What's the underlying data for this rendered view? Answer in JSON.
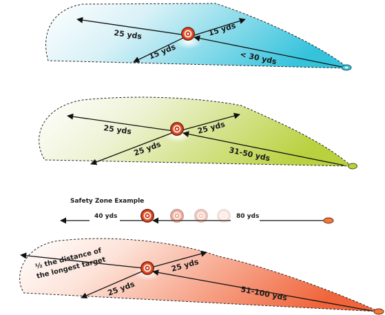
{
  "zone1": {
    "labels": {
      "left_upper": "25 yds",
      "right_upper": "15 yds",
      "left_lower": "15 yds",
      "right_lower": "< 30 yds"
    },
    "fill_color": "#35c3dc",
    "shooter_color": "#35c3dc"
  },
  "zone2": {
    "labels": {
      "left_upper": "25 yds",
      "right_upper": "25 yds",
      "left_lower": "25 yds",
      "right_lower": "31-50 yds"
    },
    "fill_color": "#b9d13e",
    "shooter_color": "#b9d13e"
  },
  "example": {
    "title": "Safety Zone Example",
    "left_label": "40 yds",
    "right_label": "80 yds",
    "shooter_color": "#f07a3c"
  },
  "zone3": {
    "labels": {
      "left_upper": "½ the distance of",
      "left_upper_2": "the longest target",
      "right_upper": "25 yds",
      "left_lower": "25 yds",
      "right_lower": "51-100 yds"
    },
    "fill_color": "#f0653b",
    "shooter_color": "#f07a3c"
  },
  "colors": {
    "target_red": "#c8321d",
    "target_orange": "#e6692a",
    "target_black": "#1a1a1a"
  },
  "icons": [
    "target-icon",
    "shooter-marker-icon"
  ]
}
